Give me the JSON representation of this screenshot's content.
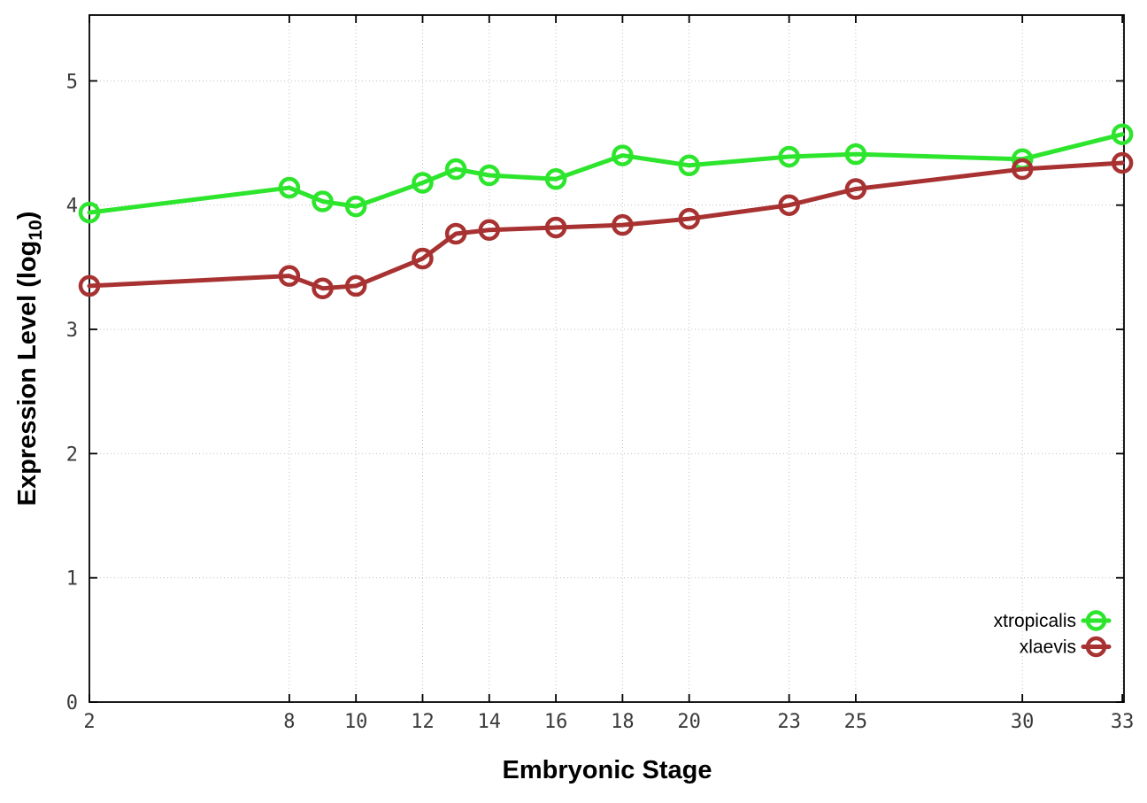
{
  "figure": {
    "background": "#ffffff",
    "xlabel": "Embryonic Stage",
    "ylabel_pre": "Expression Level (log",
    "ylabel_sub": "10",
    "ylabel_post": ")"
  },
  "chart_data": {
    "type": "line",
    "title": "",
    "xlabel": "Embryonic Stage",
    "ylabel": "Expression Level (log10)",
    "x_tick_labels": [
      "2",
      "8",
      "10",
      "12",
      "14",
      "16",
      "18",
      "20",
      "23",
      "25",
      "30",
      "33"
    ],
    "x_tick_values": [
      2,
      8,
      10,
      12,
      14,
      16,
      18,
      20,
      23,
      25,
      30,
      33
    ],
    "y_tick_labels": [
      "0",
      "1",
      "2",
      "3",
      "4",
      "5"
    ],
    "y_tick_values": [
      0,
      1,
      2,
      3,
      4,
      5
    ],
    "xlim": [
      2,
      33.05
    ],
    "ylim": [
      0,
      5.53
    ],
    "grid": true,
    "grid_style": "dotted",
    "legend_position": "inside-bottom-right",
    "x": [
      2,
      8,
      9,
      10,
      12,
      13,
      14,
      16,
      18,
      20,
      23,
      25,
      30,
      33
    ],
    "series": [
      {
        "name": "xtropicalis",
        "color": "#2ce52c",
        "marker": "open-circle",
        "values": [
          3.94,
          4.14,
          4.03,
          3.99,
          4.18,
          4.29,
          4.24,
          4.21,
          4.4,
          4.32,
          4.39,
          4.41,
          4.37,
          4.57
        ]
      },
      {
        "name": "xlaevis",
        "color": "#a83232",
        "marker": "open-circle",
        "values": [
          3.35,
          3.43,
          3.33,
          3.35,
          3.57,
          3.77,
          3.8,
          3.82,
          3.84,
          3.89,
          4.0,
          4.13,
          4.29,
          4.34
        ]
      }
    ]
  },
  "style": {
    "grid_color": "#bfbfbf",
    "axis_color": "#000000",
    "tick_label_color": "#3a3a3a",
    "title_color": "#000000"
  }
}
